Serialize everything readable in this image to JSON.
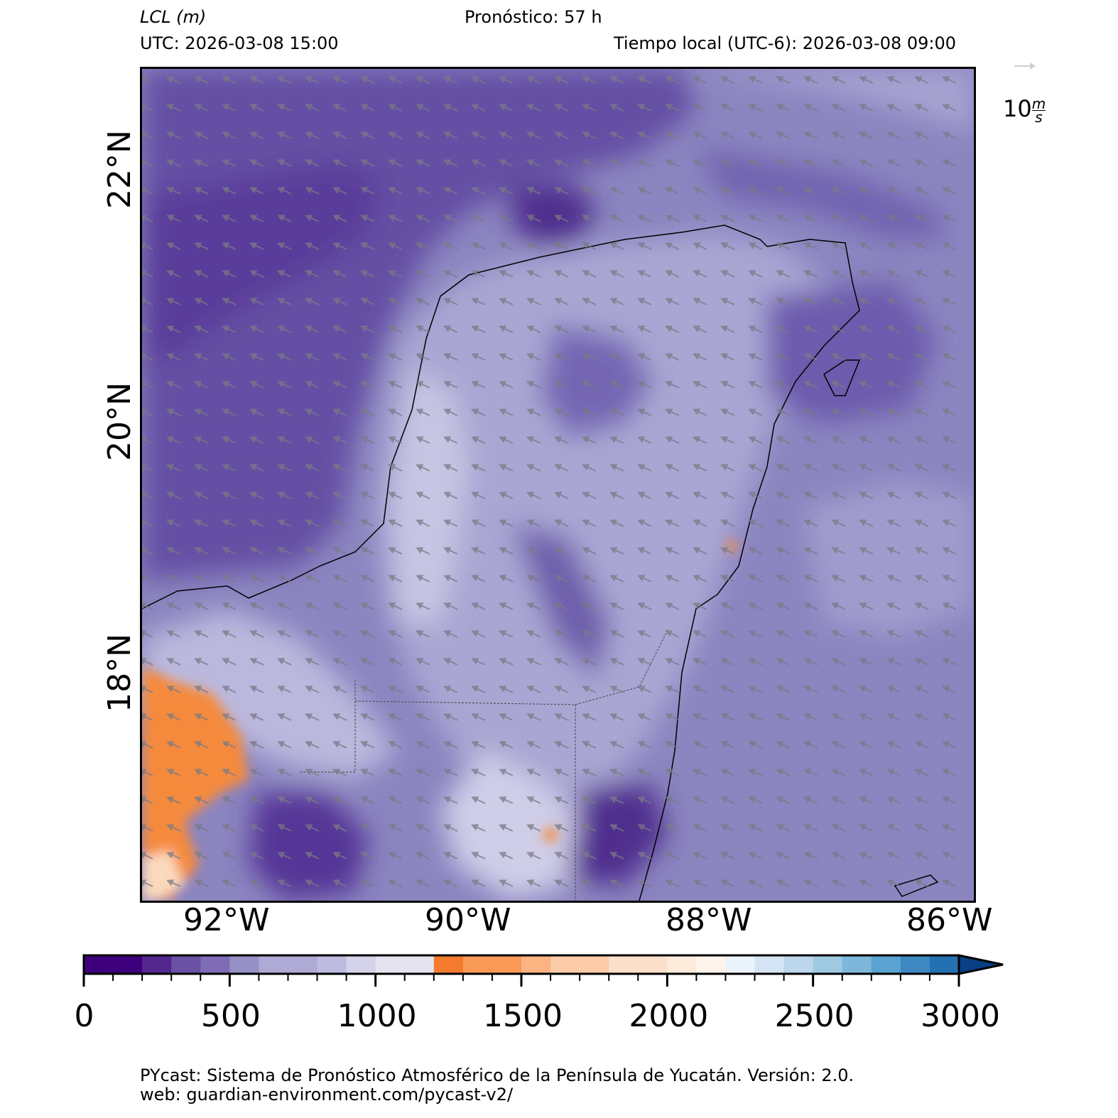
{
  "header": {
    "variable": "LCL",
    "variable_unit": "(m)",
    "forecast": "Pronóstico: 57 h",
    "utc": "UTC:  2026-03-08 15:00",
    "local": "Tiempo local (UTC-6): 2026-03-08 09:00"
  },
  "map": {
    "lat_labels": [
      "22°N",
      "20°N",
      "18°N"
    ],
    "lon_labels": [
      "92°W",
      "90°W",
      "88°W",
      "86°W"
    ],
    "wind_reference": {
      "value": "10",
      "unit_num": "m",
      "unit_den": "s"
    },
    "wind_direction": "from east-southeast"
  },
  "colorbar": {
    "tick_labels": [
      "0",
      "500",
      "1000",
      "1500",
      "2000",
      "2500",
      "3000"
    ],
    "colors": [
      "#3f007d",
      "#54278f",
      "#6a51a3",
      "#7e6cb6",
      "#9590c6",
      "#aeaad5",
      "#bdbbdf",
      "#d4d3ea",
      "#e5e3f0",
      "#f47a2e",
      "#f89a56",
      "#fab381",
      "#fccba8",
      "#fde0c9",
      "#fdebdb",
      "#fef4eb",
      "#eaf2fb",
      "#d4e4f4",
      "#bcd6ec",
      "#9ecae1",
      "#7db7da",
      "#5aa2cf",
      "#3d88c1",
      "#2470b3",
      "#1259a2",
      "#083f85"
    ],
    "extend": "max"
  },
  "footer": {
    "line1": "PYcast: Sistema de Pronóstico Atmosférico de la Península de Yucatán. Versión: 2.0.",
    "line2": "web: guardian-environment.com/pycast-v2/"
  }
}
